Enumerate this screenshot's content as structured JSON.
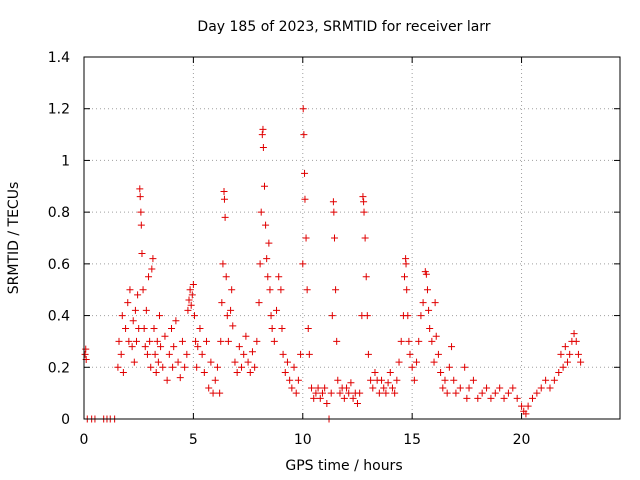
{
  "chart_data": {
    "type": "scatter",
    "title": "Day 185 of 2023, SRMTID for receiver larr",
    "xlabel": "GPS time / hours",
    "ylabel": "SRMTID / TECUs",
    "xlim": [
      0,
      24.5
    ],
    "ylim": [
      0,
      1.4
    ],
    "xticks": [
      0,
      5,
      10,
      15,
      20
    ],
    "xtick_labels": [
      "0",
      "5",
      "10",
      "15",
      "20"
    ],
    "yticks": [
      0,
      0.2,
      0.4,
      0.6,
      0.8,
      1.0,
      1.2,
      1.4
    ],
    "ytick_labels": [
      "0",
      "0.2",
      "0.4",
      "0.6",
      "0.8",
      "1",
      "1.2",
      "1.4"
    ],
    "grid": true,
    "marker": "+",
    "series": [
      {
        "name": "SRMTID",
        "color": "#e00000",
        "points": [
          [
            0.05,
            0.25
          ],
          [
            0.08,
            0.27
          ],
          [
            0.1,
            0.23
          ],
          [
            0.15,
            0.0
          ],
          [
            0.35,
            0.0
          ],
          [
            0.5,
            0.0
          ],
          [
            0.9,
            0.0
          ],
          [
            1.05,
            0.0
          ],
          [
            1.2,
            0.0
          ],
          [
            1.4,
            0.0
          ],
          [
            1.55,
            0.2
          ],
          [
            1.6,
            0.3
          ],
          [
            1.7,
            0.25
          ],
          [
            1.75,
            0.4
          ],
          [
            1.8,
            0.18
          ],
          [
            1.9,
            0.35
          ],
          [
            2.0,
            0.45
          ],
          [
            2.05,
            0.3
          ],
          [
            2.1,
            0.5
          ],
          [
            2.2,
            0.28
          ],
          [
            2.25,
            0.38
          ],
          [
            2.3,
            0.22
          ],
          [
            2.35,
            0.42
          ],
          [
            2.4,
            0.3
          ],
          [
            2.45,
            0.48
          ],
          [
            2.5,
            0.35
          ],
          [
            2.55,
            0.89
          ],
          [
            2.57,
            0.86
          ],
          [
            2.6,
            0.8
          ],
          [
            2.62,
            0.75
          ],
          [
            2.65,
            0.64
          ],
          [
            2.7,
            0.5
          ],
          [
            2.75,
            0.35
          ],
          [
            2.8,
            0.28
          ],
          [
            2.85,
            0.42
          ],
          [
            2.9,
            0.25
          ],
          [
            2.95,
            0.55
          ],
          [
            3.0,
            0.3
          ],
          [
            3.05,
            0.2
          ],
          [
            3.1,
            0.58
          ],
          [
            3.15,
            0.62
          ],
          [
            3.2,
            0.35
          ],
          [
            3.25,
            0.25
          ],
          [
            3.3,
            0.18
          ],
          [
            3.35,
            0.3
          ],
          [
            3.4,
            0.22
          ],
          [
            3.45,
            0.4
          ],
          [
            3.5,
            0.28
          ],
          [
            3.6,
            0.2
          ],
          [
            3.7,
            0.32
          ],
          [
            3.8,
            0.15
          ],
          [
            3.9,
            0.25
          ],
          [
            4.0,
            0.35
          ],
          [
            4.05,
            0.2
          ],
          [
            4.1,
            0.28
          ],
          [
            4.2,
            0.38
          ],
          [
            4.3,
            0.22
          ],
          [
            4.4,
            0.16
          ],
          [
            4.5,
            0.3
          ],
          [
            4.6,
            0.2
          ],
          [
            4.7,
            0.25
          ],
          [
            4.75,
            0.42
          ],
          [
            4.8,
            0.46
          ],
          [
            4.85,
            0.5
          ],
          [
            4.9,
            0.44
          ],
          [
            4.95,
            0.48
          ],
          [
            5.0,
            0.52
          ],
          [
            5.05,
            0.4
          ],
          [
            5.1,
            0.3
          ],
          [
            5.15,
            0.2
          ],
          [
            5.2,
            0.28
          ],
          [
            5.3,
            0.35
          ],
          [
            5.4,
            0.25
          ],
          [
            5.5,
            0.18
          ],
          [
            5.6,
            0.3
          ],
          [
            5.7,
            0.12
          ],
          [
            5.8,
            0.22
          ],
          [
            5.9,
            0.1
          ],
          [
            6.0,
            0.15
          ],
          [
            6.1,
            0.2
          ],
          [
            6.2,
            0.1
          ],
          [
            6.25,
            0.3
          ],
          [
            6.3,
            0.45
          ],
          [
            6.35,
            0.6
          ],
          [
            6.4,
            0.88
          ],
          [
            6.42,
            0.85
          ],
          [
            6.45,
            0.78
          ],
          [
            6.5,
            0.55
          ],
          [
            6.55,
            0.4
          ],
          [
            6.6,
            0.3
          ],
          [
            6.7,
            0.42
          ],
          [
            6.75,
            0.5
          ],
          [
            6.8,
            0.36
          ],
          [
            6.9,
            0.22
          ],
          [
            7.0,
            0.18
          ],
          [
            7.1,
            0.28
          ],
          [
            7.2,
            0.2
          ],
          [
            7.3,
            0.25
          ],
          [
            7.4,
            0.32
          ],
          [
            7.5,
            0.22
          ],
          [
            7.6,
            0.18
          ],
          [
            7.7,
            0.26
          ],
          [
            7.8,
            0.2
          ],
          [
            7.9,
            0.3
          ],
          [
            8.0,
            0.45
          ],
          [
            8.05,
            0.6
          ],
          [
            8.1,
            0.8
          ],
          [
            8.15,
            1.1
          ],
          [
            8.18,
            1.12
          ],
          [
            8.2,
            1.05
          ],
          [
            8.25,
            0.9
          ],
          [
            8.3,
            0.75
          ],
          [
            8.35,
            0.62
          ],
          [
            8.4,
            0.55
          ],
          [
            8.45,
            0.68
          ],
          [
            8.5,
            0.5
          ],
          [
            8.55,
            0.4
          ],
          [
            8.6,
            0.35
          ],
          [
            8.7,
            0.3
          ],
          [
            8.8,
            0.42
          ],
          [
            8.9,
            0.55
          ],
          [
            9.0,
            0.5
          ],
          [
            9.05,
            0.35
          ],
          [
            9.1,
            0.25
          ],
          [
            9.2,
            0.18
          ],
          [
            9.3,
            0.22
          ],
          [
            9.4,
            0.15
          ],
          [
            9.5,
            0.12
          ],
          [
            9.6,
            0.2
          ],
          [
            9.7,
            0.1
          ],
          [
            9.8,
            0.15
          ],
          [
            9.9,
            0.25
          ],
          [
            10.0,
            0.6
          ],
          [
            10.02,
            1.2
          ],
          [
            10.05,
            1.1
          ],
          [
            10.08,
            0.95
          ],
          [
            10.1,
            0.85
          ],
          [
            10.15,
            0.7
          ],
          [
            10.2,
            0.5
          ],
          [
            10.25,
            0.35
          ],
          [
            10.3,
            0.25
          ],
          [
            10.4,
            0.12
          ],
          [
            10.5,
            0.08
          ],
          [
            10.6,
            0.1
          ],
          [
            10.7,
            0.12
          ],
          [
            10.8,
            0.08
          ],
          [
            10.9,
            0.1
          ],
          [
            11.0,
            0.12
          ],
          [
            11.1,
            0.06
          ],
          [
            11.2,
            0.0
          ],
          [
            11.3,
            0.1
          ],
          [
            11.35,
            0.4
          ],
          [
            11.4,
            0.84
          ],
          [
            11.42,
            0.8
          ],
          [
            11.45,
            0.7
          ],
          [
            11.5,
            0.5
          ],
          [
            11.55,
            0.3
          ],
          [
            11.6,
            0.15
          ],
          [
            11.7,
            0.1
          ],
          [
            11.8,
            0.12
          ],
          [
            11.9,
            0.08
          ],
          [
            12.0,
            0.12
          ],
          [
            12.1,
            0.1
          ],
          [
            12.2,
            0.14
          ],
          [
            12.3,
            0.08
          ],
          [
            12.4,
            0.1
          ],
          [
            12.5,
            0.06
          ],
          [
            12.6,
            0.1
          ],
          [
            12.7,
            0.4
          ],
          [
            12.75,
            0.86
          ],
          [
            12.78,
            0.84
          ],
          [
            12.8,
            0.8
          ],
          [
            12.85,
            0.7
          ],
          [
            12.9,
            0.55
          ],
          [
            12.95,
            0.4
          ],
          [
            13.0,
            0.25
          ],
          [
            13.1,
            0.15
          ],
          [
            13.2,
            0.12
          ],
          [
            13.3,
            0.18
          ],
          [
            13.4,
            0.15
          ],
          [
            13.5,
            0.1
          ],
          [
            13.6,
            0.15
          ],
          [
            13.7,
            0.12
          ],
          [
            13.8,
            0.1
          ],
          [
            13.9,
            0.14
          ],
          [
            14.0,
            0.18
          ],
          [
            14.1,
            0.12
          ],
          [
            14.2,
            0.1
          ],
          [
            14.3,
            0.15
          ],
          [
            14.4,
            0.22
          ],
          [
            14.5,
            0.3
          ],
          [
            14.6,
            0.4
          ],
          [
            14.65,
            0.55
          ],
          [
            14.7,
            0.62
          ],
          [
            14.72,
            0.6
          ],
          [
            14.75,
            0.5
          ],
          [
            14.8,
            0.4
          ],
          [
            14.85,
            0.3
          ],
          [
            14.9,
            0.25
          ],
          [
            15.0,
            0.2
          ],
          [
            15.1,
            0.15
          ],
          [
            15.2,
            0.22
          ],
          [
            15.3,
            0.3
          ],
          [
            15.4,
            0.4
          ],
          [
            15.5,
            0.45
          ],
          [
            15.6,
            0.57
          ],
          [
            15.65,
            0.56
          ],
          [
            15.7,
            0.5
          ],
          [
            15.75,
            0.42
          ],
          [
            15.8,
            0.35
          ],
          [
            15.9,
            0.3
          ],
          [
            16.0,
            0.22
          ],
          [
            16.05,
            0.45
          ],
          [
            16.1,
            0.32
          ],
          [
            16.2,
            0.25
          ],
          [
            16.3,
            0.18
          ],
          [
            16.4,
            0.12
          ],
          [
            16.5,
            0.15
          ],
          [
            16.6,
            0.1
          ],
          [
            16.7,
            0.2
          ],
          [
            16.8,
            0.28
          ],
          [
            16.9,
            0.15
          ],
          [
            17.0,
            0.1
          ],
          [
            17.2,
            0.12
          ],
          [
            17.4,
            0.2
          ],
          [
            17.5,
            0.08
          ],
          [
            17.6,
            0.12
          ],
          [
            17.8,
            0.15
          ],
          [
            18.0,
            0.08
          ],
          [
            18.2,
            0.1
          ],
          [
            18.4,
            0.12
          ],
          [
            18.6,
            0.08
          ],
          [
            18.8,
            0.1
          ],
          [
            19.0,
            0.12
          ],
          [
            19.2,
            0.08
          ],
          [
            19.4,
            0.1
          ],
          [
            19.6,
            0.12
          ],
          [
            19.8,
            0.08
          ],
          [
            20.0,
            0.05
          ],
          [
            20.1,
            0.03
          ],
          [
            20.2,
            0.02
          ],
          [
            20.3,
            0.05
          ],
          [
            20.5,
            0.08
          ],
          [
            20.7,
            0.1
          ],
          [
            20.9,
            0.12
          ],
          [
            21.1,
            0.15
          ],
          [
            21.3,
            0.12
          ],
          [
            21.5,
            0.15
          ],
          [
            21.7,
            0.18
          ],
          [
            21.8,
            0.25
          ],
          [
            21.9,
            0.2
          ],
          [
            22.0,
            0.28
          ],
          [
            22.1,
            0.22
          ],
          [
            22.2,
            0.25
          ],
          [
            22.3,
            0.3
          ],
          [
            22.4,
            0.33
          ],
          [
            22.5,
            0.3
          ],
          [
            22.6,
            0.25
          ],
          [
            22.7,
            0.22
          ]
        ]
      }
    ]
  }
}
